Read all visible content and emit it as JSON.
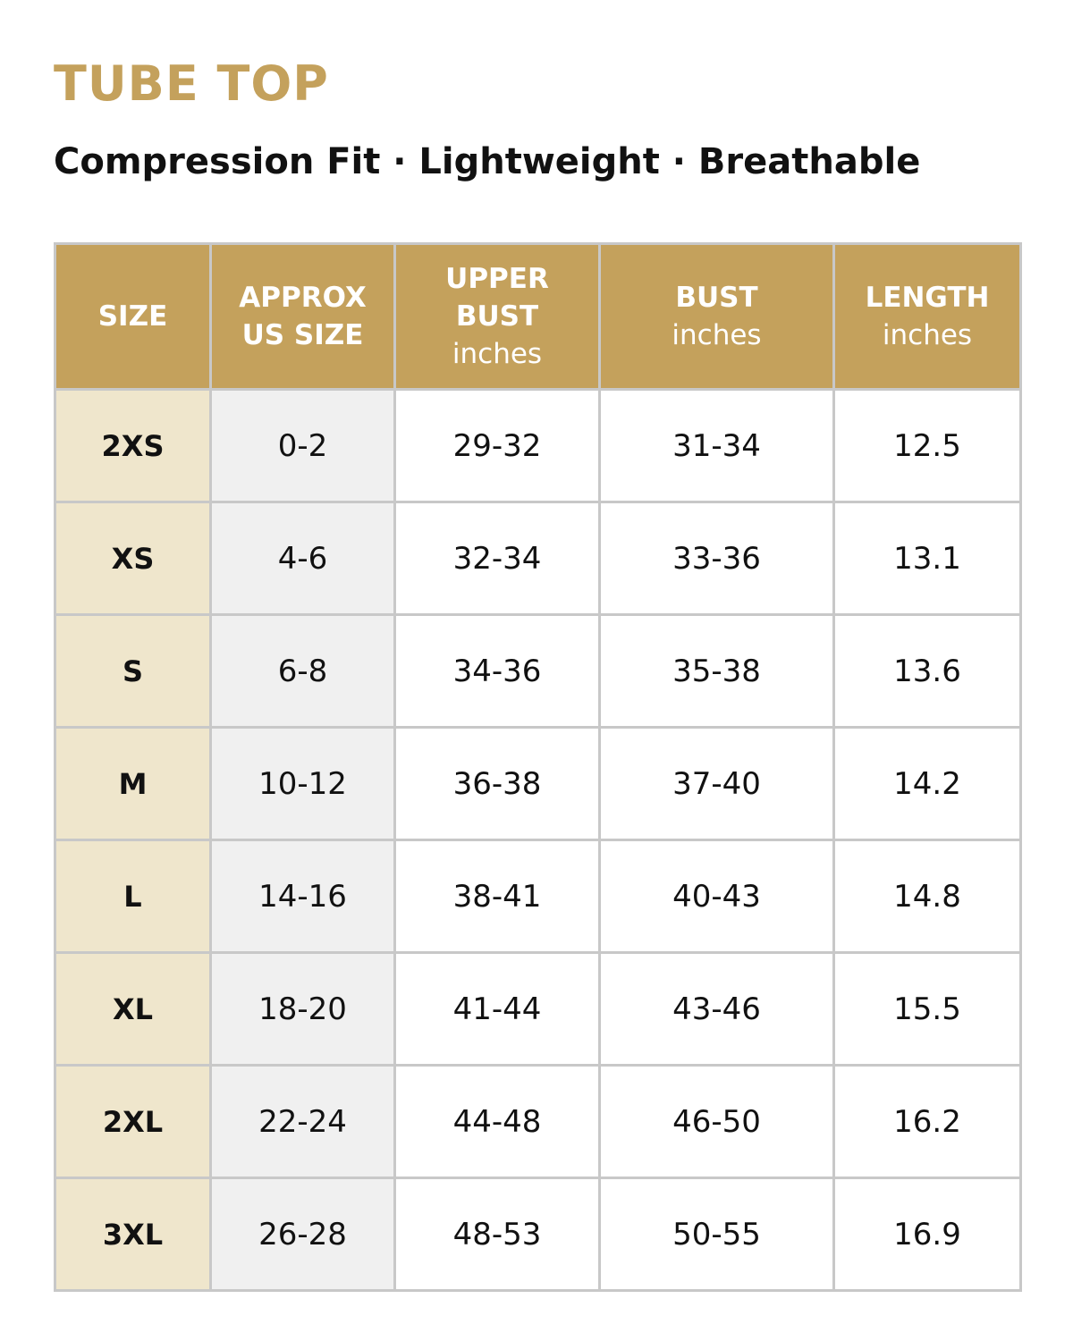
{
  "header": {
    "title": "TUBE TOP",
    "subtitle": "Compression Fit · Lightweight · Breathable"
  },
  "table": {
    "columns": [
      {
        "label": [
          "SIZE"
        ]
      },
      {
        "label": [
          "APPROX",
          "US SIZE"
        ]
      },
      {
        "label": [
          "UPPER",
          "BUST"
        ],
        "unit": "inches"
      },
      {
        "label": [
          "BUST"
        ],
        "unit": "inches"
      },
      {
        "label": [
          "LENGTH"
        ],
        "unit": "inches"
      }
    ],
    "rows": [
      [
        "2XS",
        "0-2",
        "29-32",
        "31-34",
        12.5
      ],
      [
        "XS",
        "4-6",
        "32-34",
        "33-36",
        13.1
      ],
      [
        "S",
        "6-8",
        "34-36",
        "35-38",
        13.6
      ],
      [
        "M",
        "10-12",
        "36-38",
        "37-40",
        14.2
      ],
      [
        "L",
        "14-16",
        "38-41",
        "40-43",
        14.8
      ],
      [
        "XL",
        "18-20",
        "41-44",
        "43-46",
        15.5
      ],
      [
        "2XL",
        "22-24",
        "44-48",
        "46-50",
        16.2
      ],
      [
        "3XL",
        "26-28",
        "48-53",
        "50-55",
        16.9
      ]
    ]
  }
}
